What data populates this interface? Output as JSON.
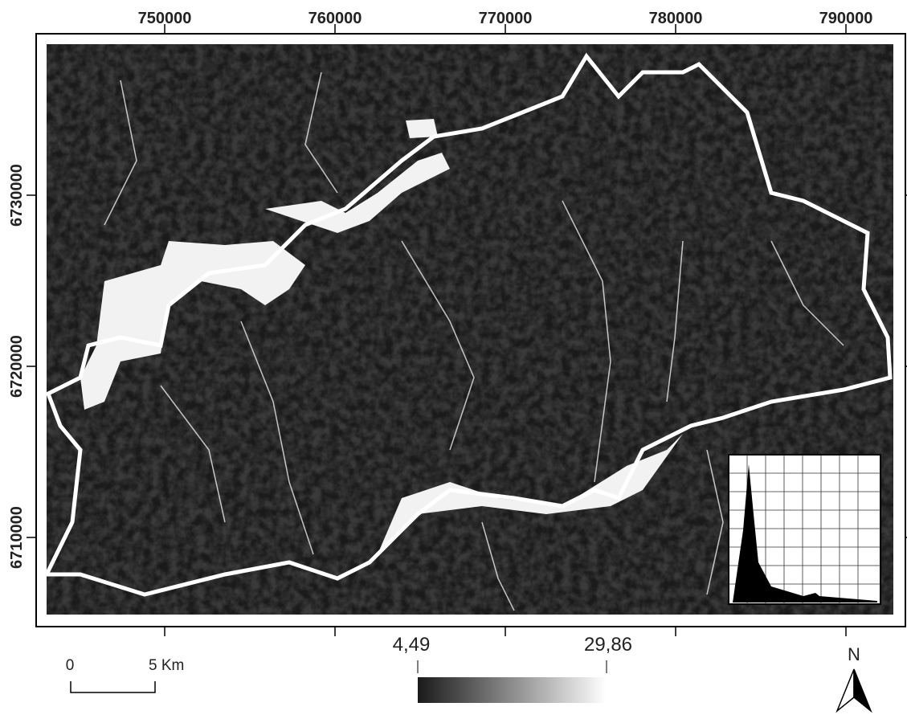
{
  "map": {
    "x_labels": [
      "750000",
      "760000",
      "770000",
      "780000",
      "790000"
    ],
    "y_labels": [
      "6730000",
      "6720000",
      "6710000"
    ],
    "scale_bar": {
      "start": "0",
      "end": "5 Km"
    },
    "legend": {
      "min": "4,49",
      "max": "29,86"
    },
    "north": "N"
  }
}
